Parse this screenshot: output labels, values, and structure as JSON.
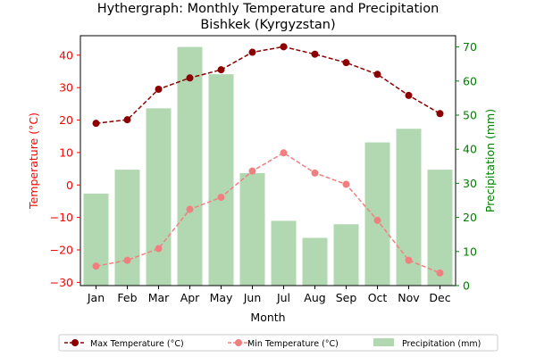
{
  "chart_data": {
    "type": "bar",
    "title": "Hythergraph: Monthly Temperature and Precipitation",
    "subtitle": "Bishkek (Kyrgyzstan)",
    "xlabel": "Month",
    "ylabel_left": "Temperature (°C)",
    "ylabel_right": "Precipitation (mm)",
    "categories": [
      "Jan",
      "Feb",
      "Mar",
      "Apr",
      "May",
      "Jun",
      "Jul",
      "Aug",
      "Sep",
      "Oct",
      "Nov",
      "Dec"
    ],
    "ylim_left": [
      -31,
      46
    ],
    "ylim_right": [
      0,
      73.3
    ],
    "yticks_left": [
      -30,
      -20,
      -10,
      0,
      10,
      20,
      30,
      40
    ],
    "yticks_right": [
      0,
      10,
      20,
      30,
      40,
      50,
      60,
      70
    ],
    "grid": false,
    "legend_position": "bottom",
    "series": [
      {
        "name": "Max Temperature (°C)",
        "kind": "line",
        "axis": "left",
        "color": "#8b0000",
        "linestyle": "dashed",
        "marker": "circle",
        "values": [
          19.0,
          20.1,
          29.5,
          33.0,
          35.5,
          40.9,
          42.6,
          40.3,
          37.7,
          34.1,
          27.6,
          22.0
        ]
      },
      {
        "name": "Min Temperature (°C)",
        "kind": "line",
        "axis": "left",
        "color": "#f08080",
        "linestyle": "dashed",
        "marker": "circle",
        "values": [
          -25.0,
          -23.2,
          -19.6,
          -7.5,
          -3.8,
          4.3,
          9.9,
          3.7,
          0.2,
          -10.9,
          -23.2,
          -27.1
        ]
      },
      {
        "name": "Precipitation (mm)",
        "kind": "bar",
        "axis": "right",
        "color": "#b2d8b2",
        "values": [
          27,
          34,
          52,
          70,
          62,
          33,
          19,
          14,
          18,
          42,
          46,
          34
        ]
      }
    ],
    "colors": {
      "left_axis": "#ff0000",
      "right_axis": "#008000",
      "axis": "#000000"
    }
  }
}
